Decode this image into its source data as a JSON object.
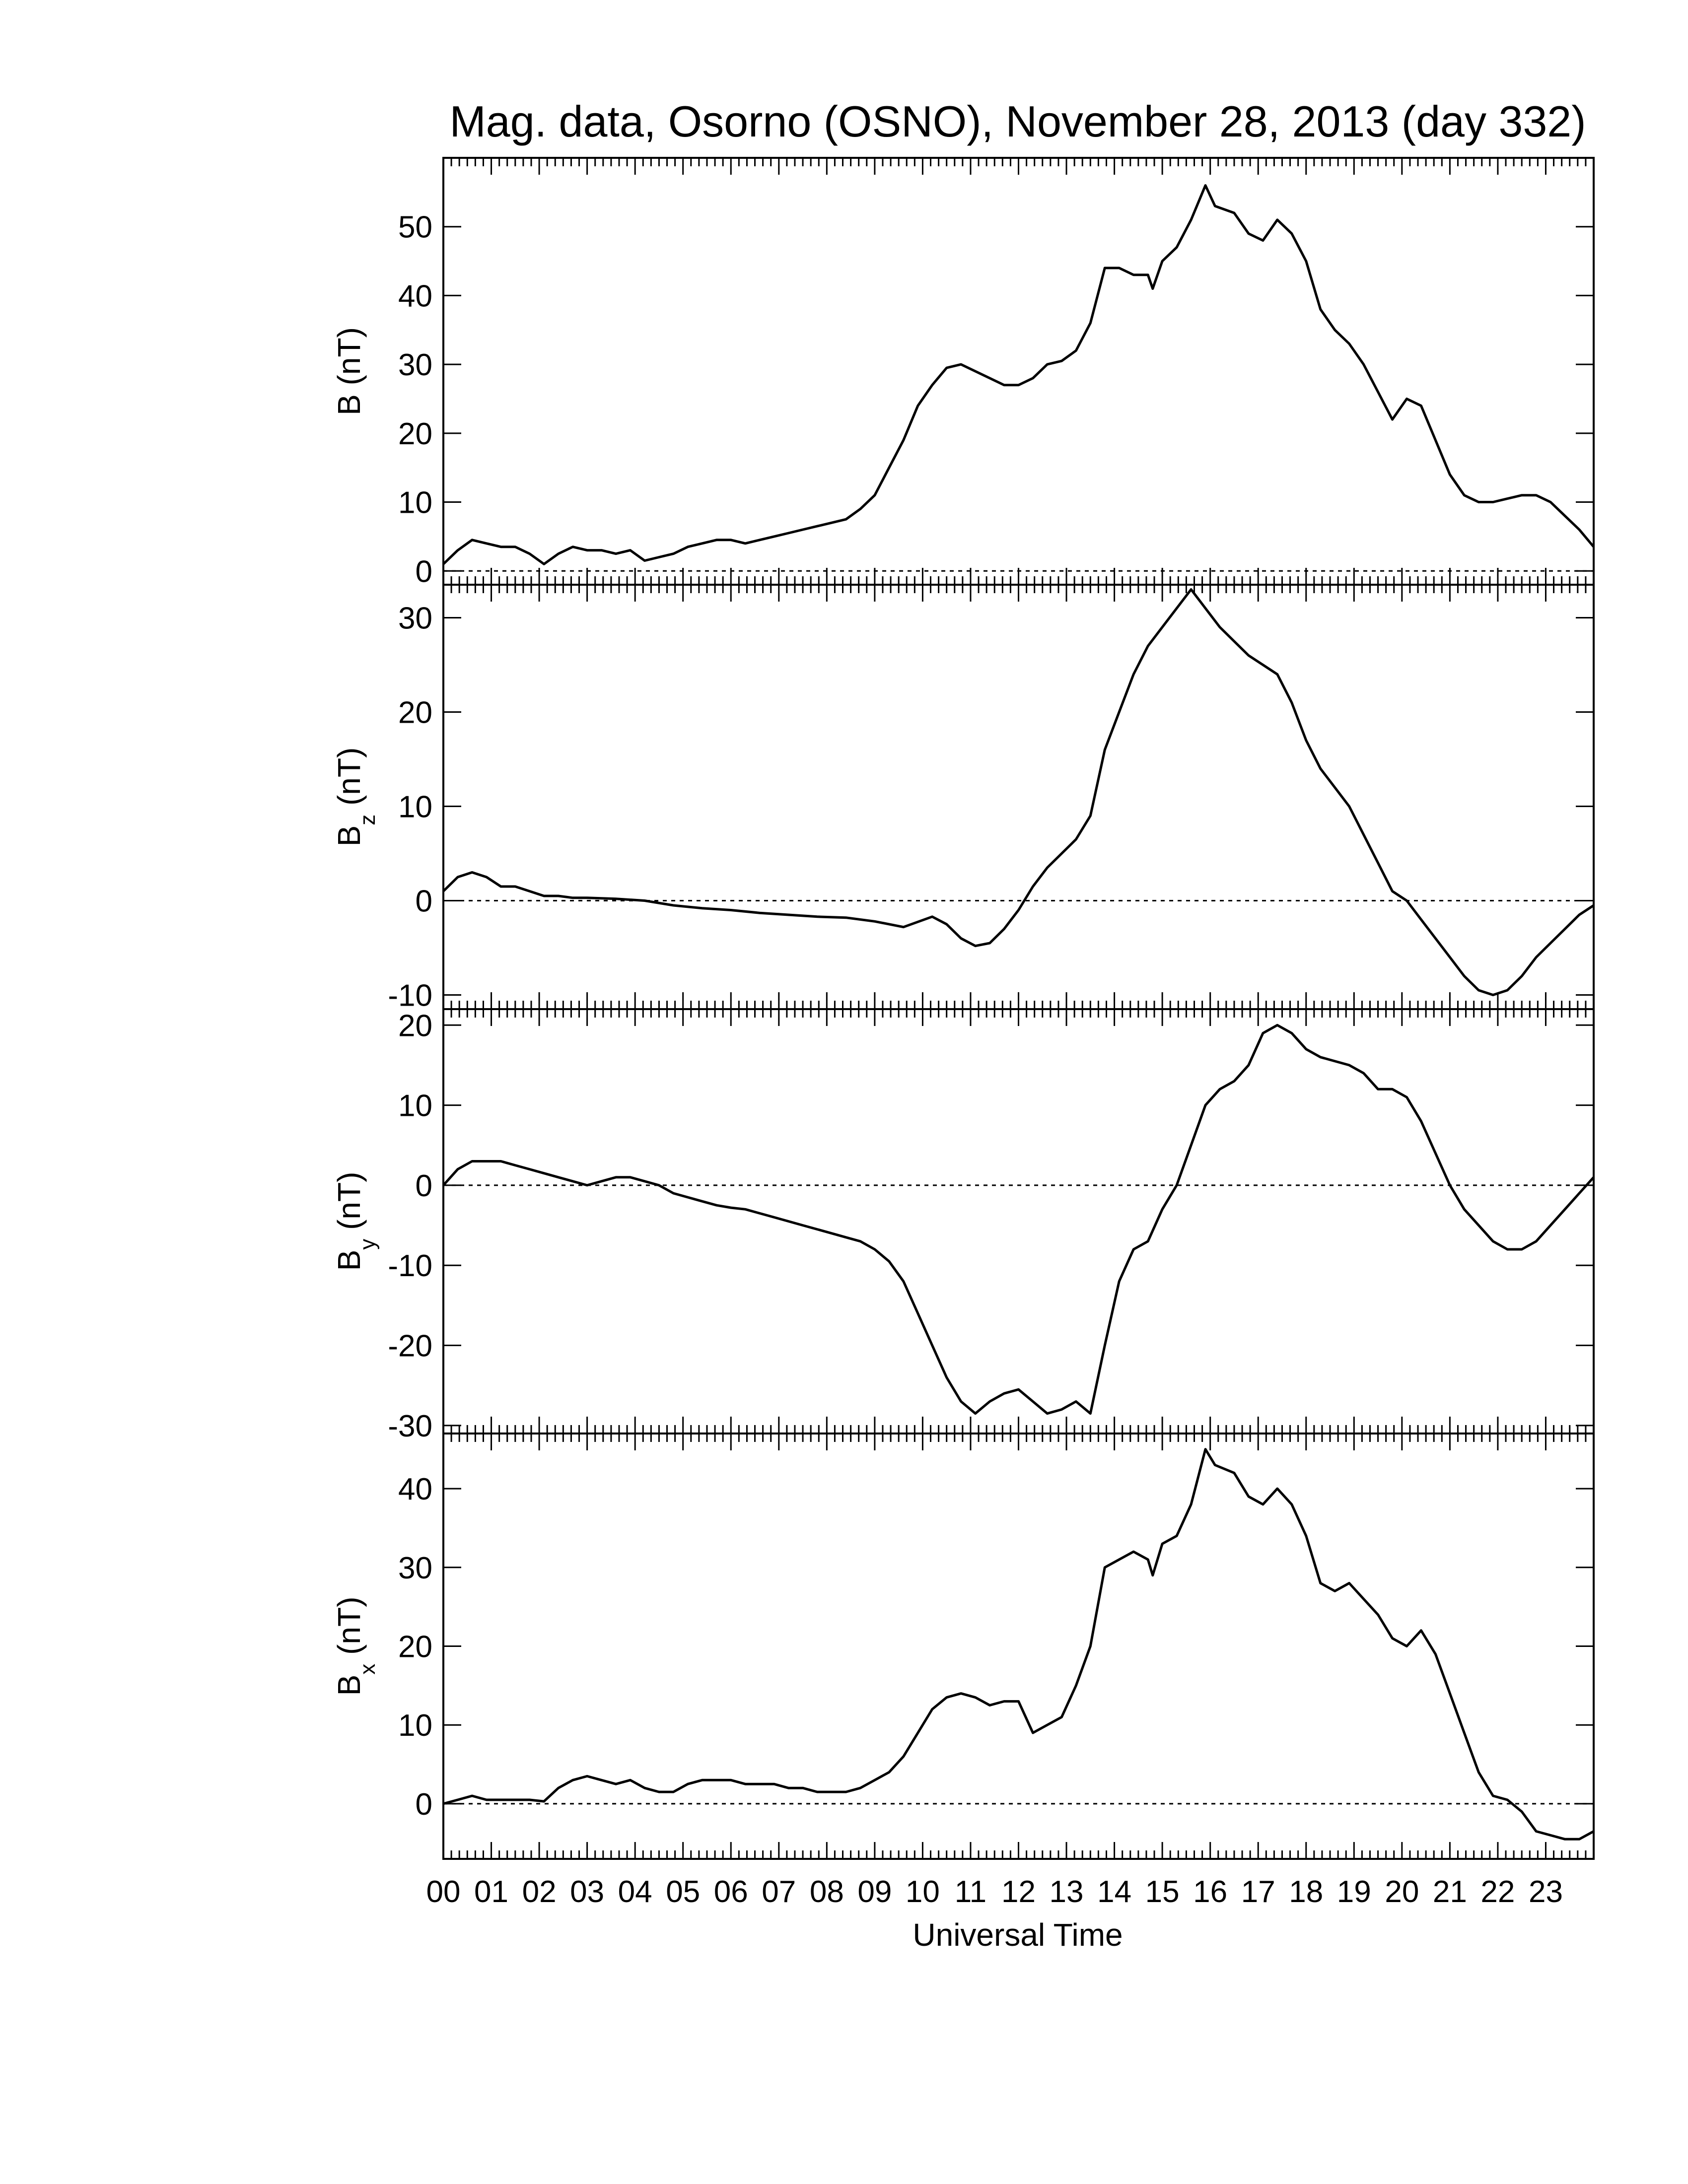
{
  "chart_data": {
    "type": "line",
    "title": "Mag. data, Osorno (OSNO), November 28, 2013 (day 332)",
    "xlabel": "Universal Time",
    "x_unit": "hours UT",
    "xlim": [
      0,
      24
    ],
    "x_tick_labels": [
      "00",
      "01",
      "02",
      "03",
      "04",
      "05",
      "06",
      "07",
      "08",
      "09",
      "10",
      "11",
      "12",
      "13",
      "14",
      "15",
      "16",
      "17",
      "18",
      "19",
      "20",
      "21",
      "22",
      "23"
    ],
    "grid": false,
    "panels": [
      {
        "ylabel_main": "B",
        "ylabel_sub": "",
        "ylabel_unit": "(nT)",
        "ylim": [
          -2,
          60
        ],
        "yticks": [
          0,
          10,
          20,
          30,
          40,
          50
        ],
        "zero_line": true,
        "x": [
          0,
          0.3,
          0.6,
          0.9,
          1.2,
          1.5,
          1.8,
          2.1,
          2.4,
          2.7,
          3.0,
          3.3,
          3.6,
          3.9,
          4.2,
          4.5,
          4.8,
          5.1,
          5.4,
          5.7,
          6.0,
          6.3,
          6.6,
          6.9,
          7.2,
          7.5,
          7.8,
          8.1,
          8.4,
          8.7,
          9.0,
          9.3,
          9.6,
          9.9,
          10.2,
          10.5,
          10.8,
          11.1,
          11.4,
          11.7,
          12.0,
          12.3,
          12.6,
          12.9,
          13.2,
          13.5,
          13.8,
          14.1,
          14.4,
          14.7,
          14.8,
          15.0,
          15.3,
          15.6,
          15.9,
          16.1,
          16.5,
          16.8,
          17.1,
          17.4,
          17.7,
          18.0,
          18.3,
          18.6,
          18.9,
          19.2,
          19.5,
          19.8,
          20.1,
          20.4,
          20.7,
          21.0,
          21.3,
          21.6,
          21.9,
          22.2,
          22.5,
          22.8,
          23.1,
          23.4,
          23.7,
          24.0
        ],
        "values": [
          1,
          3,
          4.5,
          4,
          3.5,
          3.5,
          2.5,
          1,
          2.5,
          3.5,
          3,
          3,
          2.5,
          3,
          1.5,
          2,
          2.5,
          3.5,
          4,
          4.5,
          4.5,
          4,
          4.5,
          5,
          5.5,
          6,
          6.5,
          7,
          7.5,
          9,
          11,
          15,
          19,
          24,
          27,
          29.5,
          30,
          29,
          28,
          27,
          27,
          28,
          30,
          30.5,
          32,
          36,
          44,
          44,
          43,
          43,
          41,
          45,
          47,
          51,
          56,
          53,
          52,
          49,
          48,
          51,
          49,
          45,
          38,
          35,
          33,
          30,
          26,
          22,
          25,
          24,
          19,
          14,
          11,
          10,
          10,
          10.5,
          11,
          11,
          10,
          8,
          6,
          3.5
        ]
      },
      {
        "ylabel_main": "B",
        "ylabel_sub": "z",
        "ylabel_unit": "(nT)",
        "ylim": [
          -11.5,
          33.5
        ],
        "yticks": [
          -10,
          0,
          10,
          20,
          30
        ],
        "zero_line": true,
        "x": [
          0,
          0.3,
          0.6,
          0.9,
          1.2,
          1.5,
          1.8,
          2.1,
          2.4,
          2.7,
          3.0,
          3.6,
          4.2,
          4.8,
          5.4,
          6.0,
          6.6,
          7.2,
          7.8,
          8.4,
          9.0,
          9.6,
          10.2,
          10.5,
          10.8,
          11.1,
          11.4,
          11.7,
          12.0,
          12.3,
          12.6,
          12.9,
          13.2,
          13.5,
          13.8,
          14.1,
          14.4,
          14.7,
          15.0,
          15.3,
          15.6,
          15.9,
          16.2,
          16.5,
          16.8,
          17.1,
          17.4,
          17.7,
          18.0,
          18.3,
          18.6,
          18.9,
          19.2,
          19.5,
          19.8,
          20.1,
          20.4,
          20.7,
          21.0,
          21.3,
          21.6,
          21.9,
          22.2,
          22.5,
          22.8,
          23.1,
          23.4,
          23.7,
          24.0
        ],
        "values": [
          1,
          2.5,
          3,
          2.5,
          1.5,
          1.5,
          1,
          0.5,
          0.5,
          0.3,
          0.3,
          0.2,
          0,
          -0.5,
          -0.8,
          -1,
          -1.3,
          -1.5,
          -1.7,
          -1.8,
          -2.2,
          -2.8,
          -1.7,
          -2.5,
          -4,
          -4.8,
          -4.5,
          -3,
          -1,
          1.5,
          3.5,
          5,
          6.5,
          9,
          16,
          20,
          24,
          27,
          29,
          31,
          33,
          31,
          29,
          27.5,
          26,
          25,
          24,
          21,
          17,
          14,
          12,
          10,
          7,
          4,
          1,
          0,
          -2,
          -4,
          -6,
          -8,
          -9.5,
          -10,
          -9.5,
          -8,
          -6,
          -4.5,
          -3,
          -1.5,
          -0.5
        ]
      },
      {
        "ylabel_main": "B",
        "ylabel_sub": "y",
        "ylabel_unit": "(nT)",
        "ylim": [
          -31,
          22
        ],
        "yticks": [
          -30,
          -20,
          -10,
          0,
          10,
          20
        ],
        "zero_line": true,
        "x": [
          0,
          0.3,
          0.6,
          0.9,
          1.2,
          1.5,
          1.8,
          2.1,
          2.4,
          2.7,
          3.0,
          3.3,
          3.6,
          3.9,
          4.2,
          4.5,
          4.8,
          5.1,
          5.4,
          5.7,
          6.0,
          6.3,
          6.6,
          6.9,
          7.2,
          7.5,
          7.8,
          8.1,
          8.4,
          8.7,
          9.0,
          9.3,
          9.6,
          9.9,
          10.2,
          10.5,
          10.8,
          11.1,
          11.4,
          11.7,
          12.0,
          12.3,
          12.6,
          12.9,
          13.2,
          13.5,
          13.8,
          14.1,
          14.4,
          14.7,
          15.0,
          15.3,
          15.6,
          15.9,
          16.2,
          16.5,
          16.8,
          17.1,
          17.4,
          17.7,
          18.0,
          18.3,
          18.6,
          18.9,
          19.2,
          19.5,
          19.8,
          20.1,
          20.4,
          20.7,
          21.0,
          21.3,
          21.6,
          21.9,
          22.2,
          22.5,
          22.8,
          23.1,
          23.4,
          23.7,
          24.0
        ],
        "values": [
          0,
          2,
          3,
          3,
          3,
          2.5,
          2,
          1.5,
          1,
          0.5,
          0,
          0.5,
          1,
          1,
          0.5,
          0,
          -1,
          -1.5,
          -2,
          -2.5,
          -2.8,
          -3,
          -3.5,
          -4,
          -4.5,
          -5,
          -5.5,
          -6,
          -6.5,
          -7,
          -8,
          -9.5,
          -12,
          -16,
          -20,
          -24,
          -27,
          -28.5,
          -27,
          -26,
          -25.5,
          -27,
          -28.5,
          -28,
          -27,
          -28.5,
          -20,
          -12,
          -8,
          -7,
          -3,
          0,
          5,
          10,
          12,
          13,
          15,
          19,
          20,
          19,
          17,
          16,
          15.5,
          15,
          14,
          12,
          12,
          11,
          8,
          4,
          0,
          -3,
          -5,
          -7,
          -8,
          -8,
          -7,
          -5,
          -3,
          -1,
          1
        ]
      },
      {
        "ylabel_main": "B",
        "ylabel_sub": "x",
        "ylabel_unit": "(nT)",
        "ylim": [
          -7,
          47
        ],
        "yticks": [
          0,
          10,
          20,
          30,
          40
        ],
        "zero_line": true,
        "x": [
          0,
          0.3,
          0.6,
          0.9,
          1.2,
          1.5,
          1.8,
          2.1,
          2.4,
          2.7,
          3.0,
          3.3,
          3.6,
          3.9,
          4.2,
          4.5,
          4.8,
          5.1,
          5.4,
          5.7,
          6.0,
          6.3,
          6.6,
          6.9,
          7.2,
          7.5,
          7.8,
          8.1,
          8.4,
          8.7,
          9.0,
          9.3,
          9.6,
          9.9,
          10.2,
          10.5,
          10.8,
          11.1,
          11.4,
          11.7,
          12.0,
          12.3,
          12.6,
          12.9,
          13.2,
          13.5,
          13.8,
          14.1,
          14.4,
          14.7,
          14.8,
          15.0,
          15.3,
          15.6,
          15.9,
          16.1,
          16.5,
          16.8,
          17.1,
          17.4,
          17.7,
          18.0,
          18.3,
          18.6,
          18.9,
          19.2,
          19.5,
          19.8,
          20.1,
          20.4,
          20.7,
          21.0,
          21.3,
          21.6,
          21.9,
          22.2,
          22.5,
          22.8,
          23.1,
          23.4,
          23.7,
          24.0
        ],
        "values": [
          0,
          0.5,
          1,
          0.5,
          0.5,
          0.5,
          0.5,
          0.3,
          2,
          3,
          3.5,
          3,
          2.5,
          3,
          2,
          1.5,
          1.5,
          2.5,
          3,
          3,
          3,
          2.5,
          2.5,
          2.5,
          2,
          2,
          1.5,
          1.5,
          1.5,
          2,
          3,
          4,
          6,
          9,
          12,
          13.5,
          14,
          13.5,
          12.5,
          13,
          13,
          9,
          10,
          11,
          15,
          20,
          30,
          31,
          32,
          31,
          29,
          33,
          34,
          38,
          45,
          43,
          42,
          39,
          38,
          40,
          38,
          34,
          28,
          27,
          28,
          26,
          24,
          21,
          20,
          22,
          19,
          14,
          9,
          4,
          1,
          0.5,
          -1,
          -3.5,
          -4,
          -4.5,
          -4.5,
          -3.5
        ]
      }
    ]
  }
}
